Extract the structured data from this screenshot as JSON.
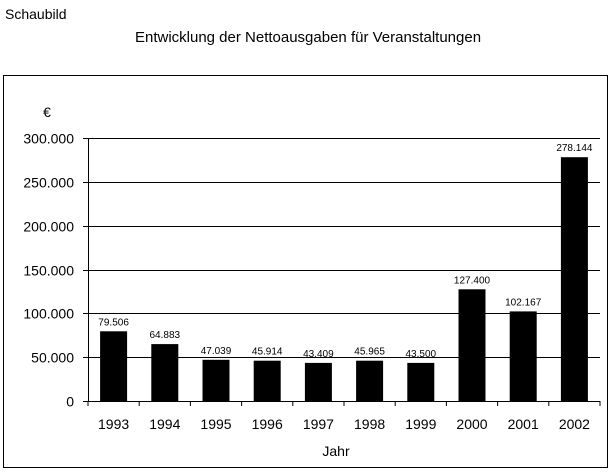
{
  "header": {
    "label": "Schaubild"
  },
  "chart_data": {
    "type": "bar",
    "title": "Entwicklung der Nettoausgaben für Veranstaltungen",
    "ylabel": "€",
    "xlabel": "Jahr",
    "categories": [
      "1993",
      "1994",
      "1995",
      "1996",
      "1997",
      "1998",
      "1999",
      "2000",
      "2001",
      "2002"
    ],
    "values": [
      79506,
      64883,
      47039,
      45914,
      43409,
      45965,
      43500,
      127400,
      102167,
      278144
    ],
    "value_labels": [
      "79.506",
      "64.883",
      "47.039",
      "45.914",
      "43.409",
      "45.965",
      "43.500",
      "127.400",
      "102.167",
      "278.144"
    ],
    "ylim": [
      0,
      300000
    ],
    "yticks": [
      0,
      50000,
      100000,
      150000,
      200000,
      250000,
      300000
    ],
    "ytick_labels": [
      "0",
      "50.000",
      "100.000",
      "150.000",
      "200.000",
      "250.000",
      "300.000"
    ],
    "grid": true,
    "bar_color": "#000000",
    "legend": "none"
  }
}
